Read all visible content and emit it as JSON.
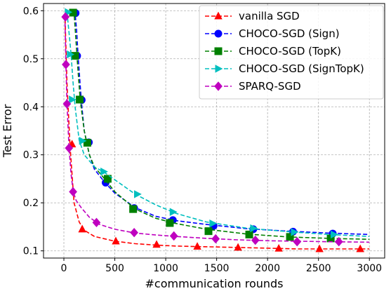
{
  "chart_data": {
    "type": "line",
    "xlabel": "#communication rounds",
    "ylabel": "Test Error",
    "xlim": [
      -200,
      3150
    ],
    "ylim": [
      0.085,
      0.615
    ],
    "xticks": [
      0,
      500,
      1000,
      1500,
      2000,
      2500,
      3000
    ],
    "yticks": [
      0.1,
      0.2,
      0.3,
      0.4,
      0.5,
      0.6
    ],
    "ytick_labels": [
      "0.1",
      "0.2",
      "0.3",
      "0.4",
      "0.5",
      "0.6"
    ],
    "grid": true,
    "legend_position": "top-right",
    "series": [
      {
        "name": "vanilla SGD",
        "color": "#ff0000",
        "marker": "triangle",
        "x": [
          10,
          30,
          60,
          100,
          150,
          200,
          300,
          500,
          700,
          900,
          1100,
          1300,
          1500,
          1700,
          1900,
          2100,
          2300,
          2500,
          2700,
          2900,
          3000
        ],
        "y": [
          0.595,
          0.45,
          0.32,
          0.2,
          0.16,
          0.143,
          0.13,
          0.12,
          0.115,
          0.112,
          0.11,
          0.109,
          0.108,
          0.107,
          0.106,
          0.105,
          0.104,
          0.104,
          0.104,
          0.104,
          0.104
        ],
        "markers_x": [
          80,
          180,
          510,
          910,
          1310,
          1710,
          2110,
          2510,
          2910
        ],
        "markers_y": [
          0.322,
          0.145,
          0.12,
          0.113,
          0.109,
          0.107,
          0.105,
          0.104,
          0.104
        ]
      },
      {
        "name": "CHOCO-SGD (Sign)",
        "color": "#0000ff",
        "marker": "circle",
        "x": [
          80,
          95,
          110,
          125,
          140,
          170,
          200,
          250,
          300,
          400,
          500,
          700,
          900,
          1100,
          1400,
          1800,
          2200,
          2600,
          3000
        ],
        "y": [
          0.597,
          0.597,
          0.595,
          0.56,
          0.505,
          0.415,
          0.35,
          0.3,
          0.27,
          0.243,
          0.22,
          0.19,
          0.172,
          0.163,
          0.155,
          0.146,
          0.141,
          0.137,
          0.134
        ],
        "markers_x": [
          115,
          130,
          175,
          245,
          410,
          690,
          1070,
          1470,
          1860,
          2250,
          2640
        ],
        "markers_y": [
          0.595,
          0.506,
          0.414,
          0.326,
          0.242,
          0.189,
          0.164,
          0.152,
          0.145,
          0.14,
          0.136
        ]
      },
      {
        "name": "CHOCO-SGD (TopK)",
        "color": "#008000",
        "marker": "square",
        "x": [
          70,
          85,
          100,
          115,
          130,
          160,
          200,
          250,
          300,
          400,
          500,
          700,
          900,
          1100,
          1400,
          1800,
          2200,
          2600,
          3000
        ],
        "y": [
          0.597,
          0.597,
          0.595,
          0.55,
          0.5,
          0.415,
          0.35,
          0.3,
          0.275,
          0.25,
          0.223,
          0.187,
          0.168,
          0.157,
          0.145,
          0.135,
          0.129,
          0.126,
          0.124
        ],
        "markers_x": [
          90,
          110,
          155,
          230,
          430,
          680,
          1040,
          1420,
          1820,
          2220,
          2620
        ],
        "markers_y": [
          0.596,
          0.506,
          0.415,
          0.325,
          0.25,
          0.187,
          0.158,
          0.141,
          0.134,
          0.129,
          0.126
        ]
      },
      {
        "name": "CHOCO-SGD (SignTopK)",
        "color": "#00bfbf",
        "marker": "triangle-right",
        "x": [
          30,
          50,
          70,
          90,
          110,
          150,
          200,
          300,
          400,
          500,
          700,
          900,
          1100,
          1400,
          1800,
          2200,
          2600,
          3000
        ],
        "y": [
          0.597,
          0.555,
          0.51,
          0.45,
          0.4,
          0.33,
          0.3,
          0.275,
          0.263,
          0.248,
          0.218,
          0.196,
          0.178,
          0.16,
          0.147,
          0.14,
          0.134,
          0.13
        ],
        "markers_x": [
          40,
          60,
          80,
          180,
          390,
          720,
          1070,
          1460,
          1860,
          2260,
          2650
        ],
        "markers_y": [
          0.597,
          0.509,
          0.415,
          0.329,
          0.265,
          0.218,
          0.181,
          0.157,
          0.147,
          0.139,
          0.134
        ]
      },
      {
        "name": "SPARQ-SGD",
        "color": "#bf00bf",
        "marker": "diamond",
        "x": [
          10,
          20,
          30,
          50,
          70,
          90,
          120,
          170,
          250,
          350,
          500,
          700,
          900,
          1100,
          1400,
          1700,
          2000,
          2300,
          2600,
          3000
        ],
        "y": [
          0.587,
          0.488,
          0.406,
          0.316,
          0.26,
          0.225,
          0.205,
          0.19,
          0.17,
          0.155,
          0.145,
          0.137,
          0.133,
          0.13,
          0.126,
          0.123,
          0.121,
          0.12,
          0.119,
          0.118
        ],
        "markers_x": [
          15,
          20,
          30,
          50,
          90,
          320,
          690,
          1080,
          1490,
          1880,
          2290,
          2700
        ],
        "markers_y": [
          0.587,
          0.488,
          0.406,
          0.314,
          0.223,
          0.159,
          0.138,
          0.131,
          0.125,
          0.122,
          0.119,
          0.119
        ]
      }
    ]
  }
}
